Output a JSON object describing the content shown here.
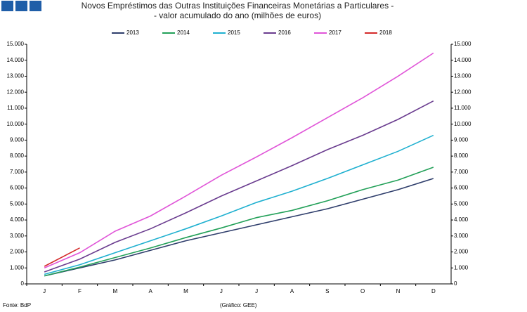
{
  "chart_data": {
    "type": "line",
    "title": "Novos Empréstimos das Outras Instituições Financeiras Monetárias a Particulares -",
    "subtitle": "- valor acumulado do ano (milhões de euros)",
    "source": "Fonte: BdP",
    "credit": "(Gráfico: GEE)",
    "categories": [
      "J",
      "F",
      "M",
      "A",
      "M",
      "J",
      "J",
      "A",
      "S",
      "O",
      "N",
      "D"
    ],
    "ylim": [
      0,
      15000
    ],
    "yticks": [
      0,
      {
        "value": 1000,
        "label": "1.000"
      },
      {
        "value": 2000,
        "label": "2.000"
      },
      {
        "value": 3000,
        "label": "3.000"
      },
      {
        "value": 4000,
        "label": "4.000"
      },
      {
        "value": 5000,
        "label": "5.000"
      },
      {
        "value": 6000,
        "label": "6.000"
      },
      {
        "value": 7000,
        "label": "7.000"
      },
      {
        "value": 8000,
        "label": "8.000"
      },
      {
        "value": 9000,
        "label": "9.000"
      },
      {
        "value": 10000,
        "label": "10.000"
      },
      {
        "value": 11000,
        "label": "11.000"
      },
      {
        "value": 12000,
        "label": "12.000"
      },
      {
        "value": 13000,
        "label": "13.000"
      },
      {
        "value": 14000,
        "label": "14.000"
      },
      {
        "value": 15000,
        "label": "15.000"
      }
    ],
    "grid": false,
    "legend": "top",
    "series": [
      {
        "name": "2013",
        "color": "#2e3d6b",
        "values": [
          500,
          1000,
          1500,
          2100,
          2700,
          3200,
          3700,
          4200,
          4700,
          5300,
          5900,
          6600
        ]
      },
      {
        "name": "2014",
        "color": "#22a058",
        "values": [
          500,
          1050,
          1650,
          2250,
          2900,
          3500,
          4150,
          4600,
          5200,
          5900,
          6500,
          7300
        ]
      },
      {
        "name": "2015",
        "color": "#1fb0d0",
        "values": [
          600,
          1200,
          1950,
          2700,
          3450,
          4250,
          5100,
          5800,
          6600,
          7450,
          8300,
          9300
        ]
      },
      {
        "name": "2016",
        "color": "#6a3c8f",
        "values": [
          750,
          1550,
          2600,
          3450,
          4450,
          5500,
          6450,
          7400,
          8400,
          9300,
          10300,
          11450
        ]
      },
      {
        "name": "2017",
        "color": "#e055d8",
        "values": [
          1000,
          1950,
          3300,
          4250,
          5500,
          6800,
          7950,
          9150,
          10400,
          11650,
          13000,
          14450
        ]
      },
      {
        "name": "2018",
        "color": "#d42a2a",
        "values": [
          1100,
          2250,
          null,
          null,
          null,
          null,
          null,
          null,
          null,
          null,
          null,
          null
        ]
      }
    ]
  }
}
